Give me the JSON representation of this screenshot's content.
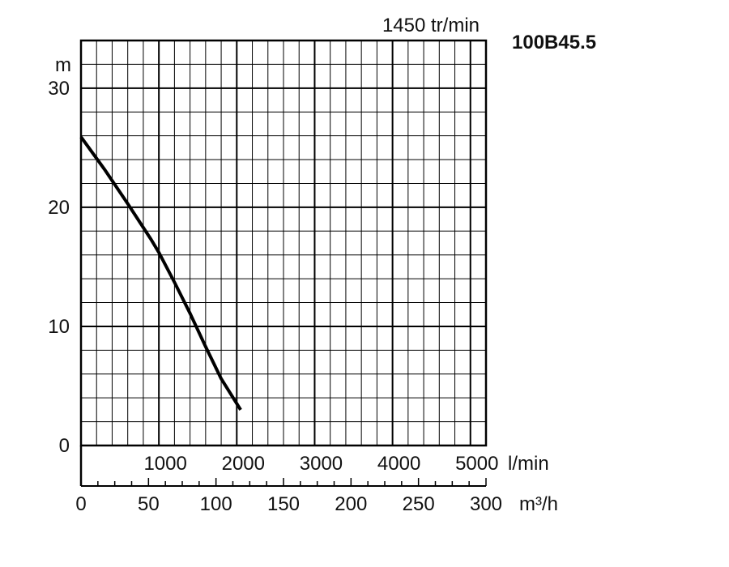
{
  "chart_data": {
    "type": "line",
    "title": "100B45.5",
    "subtitle": "1450 tr/min",
    "ylabel": "m",
    "xlabel_primary": "l/min",
    "xlabel_secondary": "m³/h",
    "ylim": [
      0,
      34
    ],
    "xlim": [
      0,
      5200
    ],
    "x_ticks_lmin": [
      1000,
      2000,
      3000,
      4000,
      5000
    ],
    "x_ticks_m3h": [
      0,
      50,
      100,
      150,
      200,
      250,
      300
    ],
    "y_ticks": [
      0,
      10,
      20,
      30
    ],
    "grid": true,
    "series": [
      {
        "x": [
          0,
          300,
          600,
          900,
          1000,
          1200,
          1400,
          1600,
          1800,
          2050
        ],
        "y": [
          25.9,
          23.2,
          20.3,
          17.3,
          16.2,
          13.7,
          11.1,
          8.3,
          5.6,
          3.0
        ]
      }
    ]
  }
}
